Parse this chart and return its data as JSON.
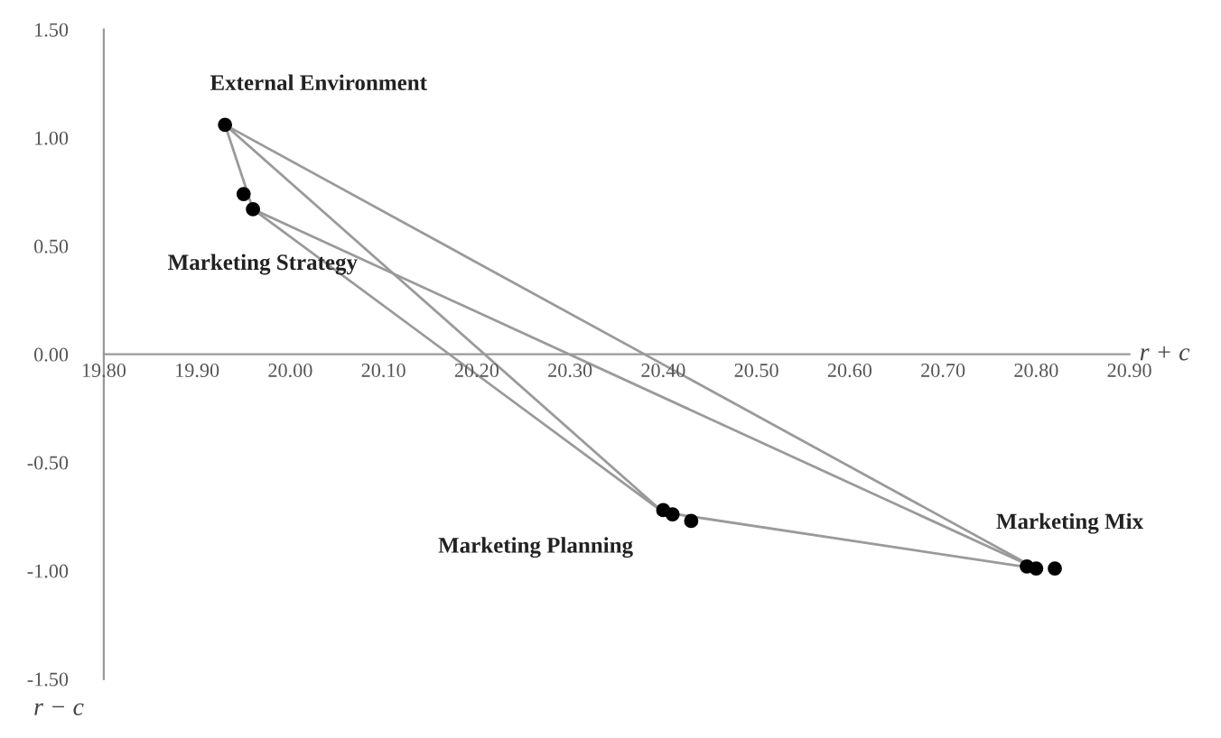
{
  "chart_data": {
    "type": "scatter",
    "xlabel": "r + c",
    "ylabel": "r − c",
    "xlim": [
      19.8,
      20.9
    ],
    "ylim": [
      -1.5,
      1.5
    ],
    "xticks": [
      {
        "value": 19.8,
        "label": "19.80"
      },
      {
        "value": 19.9,
        "label": "19.90"
      },
      {
        "value": 20.0,
        "label": "20.00"
      },
      {
        "value": 20.1,
        "label": "20.10"
      },
      {
        "value": 20.2,
        "label": "20.20"
      },
      {
        "value": 20.3,
        "label": "20.30"
      },
      {
        "value": 20.4,
        "label": "20.40"
      },
      {
        "value": 20.5,
        "label": "20.50"
      },
      {
        "value": 20.6,
        "label": "20.60"
      },
      {
        "value": 20.7,
        "label": "20.70"
      },
      {
        "value": 20.8,
        "label": "20.80"
      },
      {
        "value": 20.9,
        "label": "20.90"
      }
    ],
    "yticks": [
      {
        "value": 1.5,
        "label": "1.50"
      },
      {
        "value": 1.0,
        "label": "1.00"
      },
      {
        "value": 0.5,
        "label": "0.50"
      },
      {
        "value": 0,
        "label": "0.00"
      },
      {
        "value": -0.5,
        "label": "-0.50"
      },
      {
        "value": -1.0,
        "label": "-1.00"
      },
      {
        "value": -1.5,
        "label": "-1.50"
      }
    ],
    "series": [
      {
        "type": "line",
        "color": "#9a9a9a",
        "marker": "none",
        "line_style": "solid",
        "x": [
          19.93,
          19.96,
          20.4,
          20.8,
          19.93,
          20.4
        ],
        "values": [
          1.06,
          0.67,
          -0.73,
          -0.99,
          1.06,
          -0.73
        ]
      },
      {
        "type": "line",
        "color": "#9a9a9a",
        "marker": "none",
        "line_style": "solid",
        "x": [
          19.96,
          20.8
        ],
        "values": [
          0.67,
          -0.99
        ]
      },
      {
        "color": "#000000",
        "marker": "circle",
        "x": [
          19.93,
          19.95,
          19.96,
          20.4,
          20.41,
          20.43,
          20.79,
          20.8,
          20.82
        ],
        "values": [
          1.06,
          0.74,
          0.67,
          -0.72,
          -0.74,
          -0.77,
          -0.98,
          -0.99,
          -0.99
        ]
      }
    ],
    "annotations": [
      {
        "text": "External Environment",
        "x": 19.93,
        "y": 1.06
      },
      {
        "text": "Marketing Strategy",
        "x": 19.96,
        "y": 0.67
      },
      {
        "text": "Marketing Planning",
        "x": 20.4,
        "y": -0.73
      },
      {
        "text": "Marketing Mix",
        "x": 20.8,
        "y": -0.99
      }
    ],
    "legend": false,
    "grid": false
  }
}
